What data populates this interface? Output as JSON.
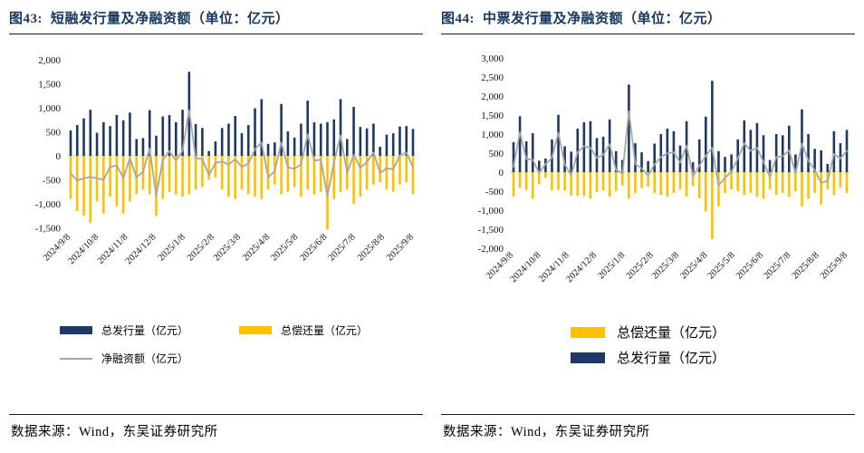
{
  "figures": [
    {
      "label": "图43:",
      "title": "短融发行量及净融资额（单位：亿元）",
      "source": "数据来源：Wind，东吴证券研究所"
    },
    {
      "label": "图44:",
      "title": "中票发行量及净融资额（单位：亿元）",
      "source": "数据来源：Wind，东吴证券研究所"
    }
  ],
  "colors": {
    "issuance_bar": "#1f3864",
    "repayment_bar": "#ffc000",
    "net_line": "#a6a6a6",
    "title_text": "#17365d",
    "rule": "#1c1c2e",
    "zero_gridline": "#d9d9d9"
  },
  "chart_data": [
    {
      "type": "bar",
      "subtype": "weekly bars up/down with net line",
      "title": "图43: 短融发行量及净融资额（单位：亿元）",
      "ylim": [
        -1500,
        2000
      ],
      "ytick_step": 500,
      "ytick_labels": [
        "2,000",
        "1,500",
        "1,000",
        "500",
        "0",
        "-500",
        "-1,000",
        "-1,500"
      ],
      "x_tick_labels": [
        "2024/9/8",
        "2024/10/8",
        "2024/11/8",
        "2024/12/8",
        "2025/1/8",
        "2025/2/8",
        "2025/3/8",
        "2025/4/8",
        "2025/5/8",
        "2025/6/8",
        "2025/7/8",
        "2025/8/8",
        "2025/9/8"
      ],
      "x_tick_positions": [
        0,
        4.29,
        8.71,
        13,
        17.43,
        21.86,
        25.86,
        30.29,
        34.57,
        39,
        43.29,
        47.71,
        52.14
      ],
      "grid": "zero line only",
      "legend_position": "bottom, issuance + repayment on row 1, net line on row 2",
      "series": [
        {
          "name": "总发行量（亿元）",
          "type": "bar",
          "color": "#1f3864",
          "values": [
            530,
            640,
            780,
            960,
            480,
            700,
            620,
            850,
            740,
            900,
            350,
            370,
            950,
            420,
            820,
            850,
            700,
            960,
            1750,
            660,
            580,
            100,
            300,
            580,
            670,
            830,
            470,
            640,
            990,
            1180,
            250,
            280,
            1080,
            510,
            380,
            670,
            1150,
            700,
            670,
            700,
            760,
            1180,
            350,
            1020,
            600,
            570,
            670,
            190,
            440,
            470,
            610,
            620,
            560
          ]
        },
        {
          "name": "总偿还量（亿元）",
          "type": "bar",
          "color": "#ffc000",
          "values": [
            -900,
            -1150,
            -1250,
            -1400,
            -950,
            -1200,
            -850,
            -1050,
            -1200,
            -950,
            -800,
            -700,
            -800,
            -1250,
            -900,
            -750,
            -800,
            -850,
            -800,
            -700,
            -650,
            -500,
            -450,
            -700,
            -850,
            -900,
            -700,
            -800,
            -850,
            -900,
            -700,
            -600,
            -800,
            -750,
            -650,
            -850,
            -700,
            -800,
            -750,
            -1530,
            -900,
            -750,
            -700,
            -1000,
            -850,
            -700,
            -600,
            -550,
            -700,
            -750,
            -600,
            -550,
            -800
          ]
        },
        {
          "name": "净融资额（亿元）",
          "type": "line",
          "color": "#a6a6a6",
          "values_rule": "net = 总发行量 + 总偿还量 (computed per week)"
        }
      ]
    },
    {
      "type": "bar",
      "subtype": "weekly bars up/down with net line",
      "title": "图44: 中票发行量及净融资额（单位：亿元）",
      "ylim": [
        -2000,
        3000
      ],
      "ytick_step": 500,
      "ytick_labels": [
        "3,000",
        "2,500",
        "2,000",
        "1,500",
        "1,000",
        "500",
        "0",
        "-500",
        "-1,000",
        "-1,500",
        "-2,000"
      ],
      "x_tick_labels": [
        "2024/9/8",
        "2024/10/8",
        "2024/11/8",
        "2024/12/8",
        "2025/1/8",
        "2025/2/8",
        "2025/3/8",
        "2025/4/8",
        "2025/5/8",
        "2025/6/8",
        "2025/7/8",
        "2025/8/8",
        "2025/9/8"
      ],
      "x_tick_positions": [
        0,
        4.29,
        8.71,
        13,
        17.43,
        21.86,
        25.86,
        30.29,
        34.57,
        39,
        43.29,
        47.71,
        52.14
      ],
      "grid": "zero line only",
      "legend_position": "bottom, stacked: repayment above issuance, net line not in legend",
      "series": [
        {
          "name": "总发行量（亿元）",
          "type": "bar",
          "color": "#1f3864",
          "values": [
            790,
            1470,
            810,
            1025,
            300,
            360,
            860,
            1505,
            680,
            540,
            1145,
            1310,
            1340,
            895,
            930,
            1385,
            550,
            320,
            2300,
            760,
            520,
            290,
            750,
            1000,
            1145,
            1075,
            700,
            1340,
            260,
            860,
            1460,
            2400,
            550,
            400,
            465,
            860,
            1360,
            1110,
            1290,
            970,
            320,
            1000,
            970,
            1220,
            465,
            1650,
            1000,
            610,
            575,
            215,
            1075,
            760,
            1110
          ]
        },
        {
          "name": "总偿还量（亿元）",
          "type": "bar",
          "color": "#ffc000",
          "values": [
            -650,
            -420,
            -470,
            -700,
            -320,
            -150,
            -480,
            -470,
            -480,
            -620,
            -620,
            -630,
            -700,
            -520,
            -480,
            -650,
            -500,
            -350,
            -700,
            -550,
            -420,
            -380,
            -550,
            -600,
            -650,
            -550,
            -450,
            -640,
            -365,
            -690,
            -1030,
            -1760,
            -900,
            -550,
            -450,
            -500,
            -600,
            -550,
            -650,
            -700,
            -450,
            -600,
            -550,
            -650,
            -500,
            -900,
            -700,
            -550,
            -850,
            -450,
            -600,
            -400,
            -550
          ]
        },
        {
          "name": "净融资额（亿元）",
          "type": "line",
          "color": "#a6a6a6",
          "values_rule": "net = 总发行量 + 总偿还量 (computed per week)"
        }
      ]
    }
  ]
}
